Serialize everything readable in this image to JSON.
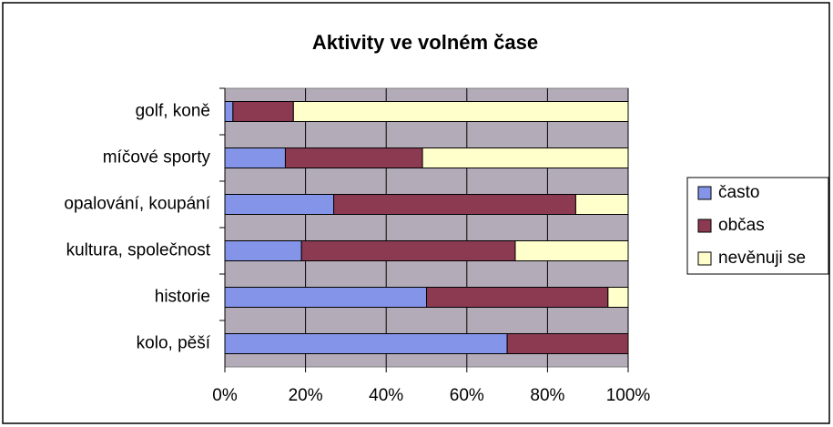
{
  "chart_data": {
    "type": "stacked-bar-horizontal",
    "title": "Aktivity ve volném čase",
    "categories": [
      "golf, koně",
      "míčové sporty",
      "opalování, koupání",
      "kultura, společnost",
      "historie",
      "kolo, pěší"
    ],
    "series": [
      {
        "name": "často",
        "color": "#8494e8",
        "values": [
          2,
          15,
          27,
          19,
          50,
          70
        ]
      },
      {
        "name": "občas",
        "color": "#8c3a52",
        "values": [
          15,
          34,
          60,
          53,
          45,
          30
        ]
      },
      {
        "name": "nevěnuji se",
        "color": "#ffffcc",
        "values": [
          83,
          51,
          13,
          28,
          5,
          0
        ]
      }
    ],
    "xlim": [
      0,
      100
    ],
    "xticks": [
      {
        "value": 0,
        "label": "0%"
      },
      {
        "value": 20,
        "label": "20%"
      },
      {
        "value": 40,
        "label": "40%"
      },
      {
        "value": 60,
        "label": "60%"
      },
      {
        "value": 80,
        "label": "80%"
      },
      {
        "value": 100,
        "label": "100%"
      }
    ],
    "grid": true,
    "legend": "right"
  }
}
